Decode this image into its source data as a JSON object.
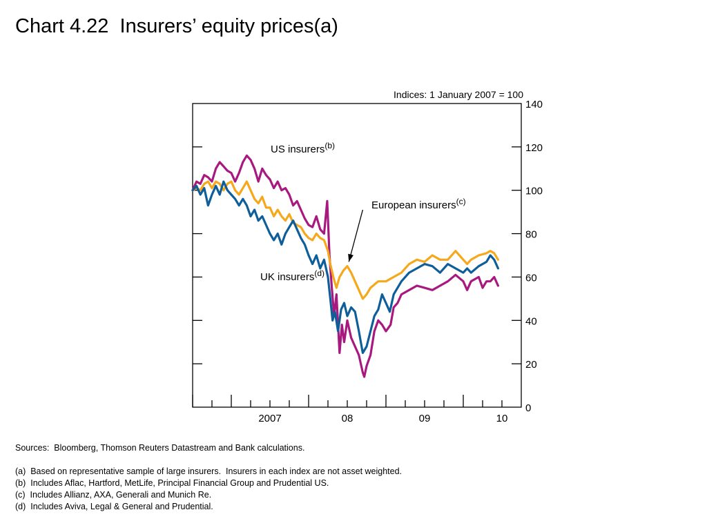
{
  "title": "Chart 4.22  Insurers’ equity prices(a)",
  "chart_data": {
    "type": "line",
    "units_label": "Indices:  1 January 2007 = 100",
    "y_ticks": [
      0,
      20,
      40,
      60,
      80,
      100,
      120,
      140
    ],
    "ylim": [
      0,
      140
    ],
    "x_range": [
      2006.5,
      2010.75
    ],
    "x_tick_labels": [
      {
        "label": "2007",
        "x": 2007.0
      },
      {
        "label": "08",
        "x": 2008.0
      },
      {
        "label": "09",
        "x": 2009.0
      },
      {
        "label": "10",
        "x": 2010.0
      }
    ],
    "series": [
      {
        "name": "US insurers",
        "name_sup": "(b)",
        "color": "#a8197f",
        "points": [
          [
            2006.5,
            100
          ],
          [
            2006.55,
            104
          ],
          [
            2006.6,
            103
          ],
          [
            2006.65,
            107
          ],
          [
            2006.7,
            106
          ],
          [
            2006.75,
            104
          ],
          [
            2006.8,
            110
          ],
          [
            2006.85,
            113
          ],
          [
            2006.9,
            111
          ],
          [
            2006.95,
            109
          ],
          [
            2007.0,
            108
          ],
          [
            2007.05,
            104
          ],
          [
            2007.1,
            108
          ],
          [
            2007.15,
            113
          ],
          [
            2007.2,
            116
          ],
          [
            2007.25,
            114
          ],
          [
            2007.3,
            110
          ],
          [
            2007.35,
            104
          ],
          [
            2007.4,
            110
          ],
          [
            2007.45,
            107
          ],
          [
            2007.5,
            105
          ],
          [
            2007.55,
            101
          ],
          [
            2007.6,
            104
          ],
          [
            2007.65,
            100
          ],
          [
            2007.7,
            101
          ],
          [
            2007.75,
            98
          ],
          [
            2007.8,
            93
          ],
          [
            2007.85,
            95
          ],
          [
            2007.9,
            91
          ],
          [
            2007.95,
            87
          ],
          [
            2008.0,
            84
          ],
          [
            2008.05,
            83
          ],
          [
            2008.1,
            88
          ],
          [
            2008.15,
            82
          ],
          [
            2008.2,
            80
          ],
          [
            2008.24,
            95
          ],
          [
            2008.27,
            70
          ],
          [
            2008.3,
            55
          ],
          [
            2008.33,
            42
          ],
          [
            2008.36,
            52
          ],
          [
            2008.4,
            25
          ],
          [
            2008.43,
            38
          ],
          [
            2008.46,
            30
          ],
          [
            2008.5,
            40
          ],
          [
            2008.55,
            32
          ],
          [
            2008.6,
            28
          ],
          [
            2008.65,
            24
          ],
          [
            2008.7,
            16
          ],
          [
            2008.72,
            14
          ],
          [
            2008.75,
            19
          ],
          [
            2008.8,
            24
          ],
          [
            2008.85,
            35
          ],
          [
            2008.9,
            40
          ],
          [
            2008.95,
            38
          ],
          [
            2009.0,
            35
          ],
          [
            2009.02,
            36
          ],
          [
            2009.06,
            38
          ],
          [
            2009.1,
            46
          ],
          [
            2009.15,
            48
          ],
          [
            2009.2,
            52
          ],
          [
            2009.3,
            54
          ],
          [
            2009.4,
            56
          ],
          [
            2009.5,
            55
          ],
          [
            2009.6,
            54
          ],
          [
            2009.7,
            56
          ],
          [
            2009.8,
            58
          ],
          [
            2009.9,
            61
          ],
          [
            2010.0,
            58
          ],
          [
            2010.05,
            54
          ],
          [
            2010.1,
            58
          ],
          [
            2010.2,
            60
          ],
          [
            2010.25,
            55
          ],
          [
            2010.3,
            58
          ],
          [
            2010.35,
            58
          ],
          [
            2010.4,
            60
          ],
          [
            2010.45,
            56
          ]
        ]
      },
      {
        "name": "European insurers",
        "name_sup": "(c)",
        "color": "#f5a81c",
        "points": [
          [
            2006.5,
            100
          ],
          [
            2006.55,
            101
          ],
          [
            2006.6,
            100
          ],
          [
            2006.65,
            103
          ],
          [
            2006.7,
            104
          ],
          [
            2006.75,
            101
          ],
          [
            2006.8,
            104
          ],
          [
            2006.85,
            103
          ],
          [
            2006.9,
            100
          ],
          [
            2006.95,
            103
          ],
          [
            2007.0,
            104
          ],
          [
            2007.05,
            100
          ],
          [
            2007.1,
            98
          ],
          [
            2007.15,
            101
          ],
          [
            2007.2,
            104
          ],
          [
            2007.25,
            100
          ],
          [
            2007.3,
            96
          ],
          [
            2007.35,
            94
          ],
          [
            2007.4,
            97
          ],
          [
            2007.45,
            92
          ],
          [
            2007.5,
            92
          ],
          [
            2007.55,
            88
          ],
          [
            2007.6,
            91
          ],
          [
            2007.65,
            88
          ],
          [
            2007.7,
            86
          ],
          [
            2007.75,
            89
          ],
          [
            2007.8,
            85
          ],
          [
            2007.85,
            84
          ],
          [
            2007.9,
            83
          ],
          [
            2007.95,
            80
          ],
          [
            2008.0,
            78
          ],
          [
            2008.05,
            77
          ],
          [
            2008.1,
            80
          ],
          [
            2008.15,
            78
          ],
          [
            2008.2,
            77
          ],
          [
            2008.25,
            72
          ],
          [
            2008.28,
            66
          ],
          [
            2008.32,
            60
          ],
          [
            2008.36,
            55
          ],
          [
            2008.4,
            60
          ],
          [
            2008.45,
            63
          ],
          [
            2008.5,
            65
          ],
          [
            2008.55,
            62
          ],
          [
            2008.6,
            58
          ],
          [
            2008.65,
            54
          ],
          [
            2008.7,
            50
          ],
          [
            2008.75,
            52
          ],
          [
            2008.8,
            55
          ],
          [
            2008.9,
            58
          ],
          [
            2009.0,
            58
          ],
          [
            2009.1,
            60
          ],
          [
            2009.2,
            62
          ],
          [
            2009.3,
            66
          ],
          [
            2009.4,
            68
          ],
          [
            2009.5,
            67
          ],
          [
            2009.6,
            70
          ],
          [
            2009.7,
            68
          ],
          [
            2009.8,
            68
          ],
          [
            2009.9,
            72
          ],
          [
            2010.0,
            68
          ],
          [
            2010.05,
            66
          ],
          [
            2010.1,
            68
          ],
          [
            2010.2,
            70
          ],
          [
            2010.3,
            71
          ],
          [
            2010.35,
            72
          ],
          [
            2010.4,
            71
          ],
          [
            2010.45,
            68
          ]
        ]
      },
      {
        "name": "UK insurers",
        "name_sup": "(d)",
        "color": "#0e5e9a",
        "points": [
          [
            2006.5,
            100
          ],
          [
            2006.55,
            102
          ],
          [
            2006.6,
            98
          ],
          [
            2006.65,
            101
          ],
          [
            2006.7,
            93
          ],
          [
            2006.75,
            98
          ],
          [
            2006.8,
            102
          ],
          [
            2006.85,
            98
          ],
          [
            2006.9,
            104
          ],
          [
            2006.95,
            100
          ],
          [
            2007.0,
            98
          ],
          [
            2007.05,
            96
          ],
          [
            2007.1,
            93
          ],
          [
            2007.15,
            96
          ],
          [
            2007.2,
            93
          ],
          [
            2007.25,
            88
          ],
          [
            2007.3,
            91
          ],
          [
            2007.35,
            86
          ],
          [
            2007.4,
            88
          ],
          [
            2007.45,
            84
          ],
          [
            2007.5,
            80
          ],
          [
            2007.55,
            77
          ],
          [
            2007.6,
            80
          ],
          [
            2007.65,
            75
          ],
          [
            2007.7,
            80
          ],
          [
            2007.75,
            83
          ],
          [
            2007.8,
            86
          ],
          [
            2007.85,
            82
          ],
          [
            2007.9,
            78
          ],
          [
            2007.95,
            75
          ],
          [
            2008.0,
            70
          ],
          [
            2008.05,
            66
          ],
          [
            2008.1,
            70
          ],
          [
            2008.15,
            64
          ],
          [
            2008.2,
            68
          ],
          [
            2008.25,
            60
          ],
          [
            2008.28,
            50
          ],
          [
            2008.31,
            40
          ],
          [
            2008.34,
            44
          ],
          [
            2008.38,
            35
          ],
          [
            2008.42,
            45
          ],
          [
            2008.46,
            48
          ],
          [
            2008.5,
            42
          ],
          [
            2008.55,
            46
          ],
          [
            2008.6,
            44
          ],
          [
            2008.65,
            35
          ],
          [
            2008.7,
            25
          ],
          [
            2008.75,
            28
          ],
          [
            2008.8,
            35
          ],
          [
            2008.85,
            42
          ],
          [
            2008.9,
            45
          ],
          [
            2008.95,
            52
          ],
          [
            2009.0,
            48
          ],
          [
            2009.05,
            44
          ],
          [
            2009.1,
            52
          ],
          [
            2009.2,
            58
          ],
          [
            2009.3,
            62
          ],
          [
            2009.4,
            64
          ],
          [
            2009.5,
            66
          ],
          [
            2009.6,
            65
          ],
          [
            2009.7,
            62
          ],
          [
            2009.8,
            66
          ],
          [
            2009.9,
            64
          ],
          [
            2010.0,
            62
          ],
          [
            2010.05,
            64
          ],
          [
            2010.1,
            62
          ],
          [
            2010.2,
            65
          ],
          [
            2010.3,
            67
          ],
          [
            2010.35,
            70
          ],
          [
            2010.4,
            68
          ],
          [
            2010.45,
            64
          ]
        ]
      }
    ],
    "annotation_arrow": {
      "from": [
        2008.7,
        91
      ],
      "to": [
        2008.52,
        67
      ]
    }
  },
  "footnotes": {
    "sources": "Sources:  Bloomberg, Thomson Reuters Datastream and Bank calculations.",
    "a": "(a)  Based on representative sample of large insurers.  Insurers in each index are not asset weighted.",
    "b": "(b)  Includes Aflac, Hartford, MetLife, Principal Financial Group and Prudential US.",
    "c": "(c)  Includes Allianz, AXA, Generali and Munich Re.",
    "d": "(d)  Includes Aviva, Legal & General and Prudential."
  }
}
